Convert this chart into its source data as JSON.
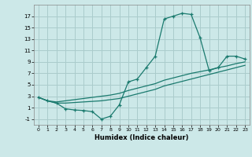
{
  "title": "",
  "xlabel": "Humidex (Indice chaleur)",
  "bg_color": "#cce8e8",
  "grid_color": "#aacccc",
  "line_color": "#1a7a6e",
  "xlim": [
    -0.5,
    23.5
  ],
  "ylim": [
    -2,
    19
  ],
  "xticks": [
    0,
    1,
    2,
    3,
    4,
    5,
    6,
    7,
    8,
    9,
    10,
    11,
    12,
    13,
    14,
    15,
    16,
    17,
    18,
    19,
    20,
    21,
    22,
    23
  ],
  "yticks": [
    -1,
    1,
    3,
    5,
    7,
    9,
    11,
    13,
    15,
    17
  ],
  "series1_x": [
    0,
    1,
    2,
    3,
    4,
    5,
    6,
    7,
    8,
    9,
    10,
    11,
    12,
    13,
    14,
    15,
    16,
    17,
    18,
    19,
    20,
    21,
    22,
    23
  ],
  "series1_y": [
    2.8,
    2.2,
    1.8,
    0.8,
    0.6,
    0.5,
    0.3,
    -1.0,
    -0.5,
    1.5,
    5.5,
    6.0,
    8.0,
    10.0,
    16.5,
    17.0,
    17.5,
    17.3,
    13.2,
    7.5,
    8.0,
    10.0,
    10.0,
    9.5
  ],
  "series2_x": [
    0,
    1,
    2,
    3,
    4,
    5,
    6,
    7,
    8,
    9,
    10,
    11,
    12,
    13,
    14,
    15,
    16,
    17,
    18,
    19,
    20,
    21,
    22,
    23
  ],
  "series2_y": [
    2.8,
    2.2,
    2.0,
    2.2,
    2.4,
    2.6,
    2.8,
    3.0,
    3.2,
    3.5,
    4.0,
    4.4,
    4.8,
    5.2,
    5.8,
    6.2,
    6.6,
    7.0,
    7.3,
    7.6,
    8.0,
    8.3,
    8.7,
    9.0
  ],
  "series3_x": [
    0,
    1,
    2,
    3,
    4,
    5,
    6,
    7,
    8,
    9,
    10,
    11,
    12,
    13,
    14,
    15,
    16,
    17,
    18,
    19,
    20,
    21,
    22,
    23
  ],
  "series3_y": [
    2.8,
    2.2,
    1.8,
    1.8,
    1.9,
    2.0,
    2.1,
    2.2,
    2.4,
    2.6,
    3.0,
    3.4,
    3.8,
    4.2,
    4.8,
    5.2,
    5.6,
    6.0,
    6.4,
    6.8,
    7.2,
    7.6,
    8.0,
    8.4
  ]
}
